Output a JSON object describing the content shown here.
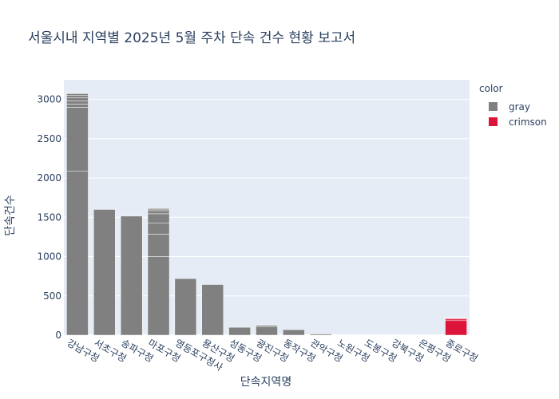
{
  "chart_data": {
    "type": "bar",
    "title": "서울시내 지역별 2025년 5월 주차 단속 건수 현황 보고서",
    "xlabel": "단속지역명",
    "ylabel": "단속건수",
    "ylim": [
      0,
      3250
    ],
    "yticks": [
      0,
      500,
      1000,
      1500,
      2000,
      2500,
      3000
    ],
    "grid": true,
    "legend": {
      "title": "color",
      "placement": "right",
      "items": [
        {
          "name": "gray",
          "color": "#808080"
        },
        {
          "name": "crimson",
          "color": "#dc143c"
        }
      ]
    },
    "categories": [
      "강남구청",
      "서초구청",
      "송파구청",
      "마포구청",
      "영등포구청사",
      "용산구청",
      "성동구청",
      "광진구청",
      "동작구청",
      "관악구청",
      "노원구청",
      "도봉구청",
      "강북구청",
      "은평구청",
      "종로구청"
    ],
    "bars": [
      {
        "category": "강남구청",
        "color": "gray",
        "segments": [
          2090,
          810,
          40,
          40,
          40,
          30,
          20,
          10
        ]
      },
      {
        "category": "서초구청",
        "color": "gray",
        "segments": [
          1600
        ]
      },
      {
        "category": "송파구청",
        "color": "gray",
        "segments": [
          1515
        ]
      },
      {
        "category": "마포구청",
        "color": "gray",
        "segments": [
          1000,
          285,
          140,
          120,
          40,
          20,
          10
        ]
      },
      {
        "category": "영등포구청사",
        "color": "gray",
        "segments": [
          720
        ]
      },
      {
        "category": "용산구청",
        "color": "gray",
        "segments": [
          645
        ]
      },
      {
        "category": "성동구청",
        "color": "gray",
        "segments": [
          100
        ]
      },
      {
        "category": "광진구청",
        "color": "gray",
        "segments": [
          105,
          20
        ]
      },
      {
        "category": "동작구청",
        "color": "gray",
        "segments": [
          70
        ]
      },
      {
        "category": "관악구청",
        "color": "gray",
        "segments": [
          15
        ]
      },
      {
        "category": "노원구청",
        "color": "gray",
        "segments": [
          5
        ]
      },
      {
        "category": "도봉구청",
        "color": "gray",
        "segments": [
          3
        ]
      },
      {
        "category": "강북구청",
        "color": "gray",
        "segments": [
          0
        ]
      },
      {
        "category": "은평구청",
        "color": "gray",
        "segments": [
          2
        ]
      },
      {
        "category": "종로구청",
        "color": "crimson",
        "segments": [
          185,
          20,
          10,
          5
        ]
      }
    ]
  }
}
